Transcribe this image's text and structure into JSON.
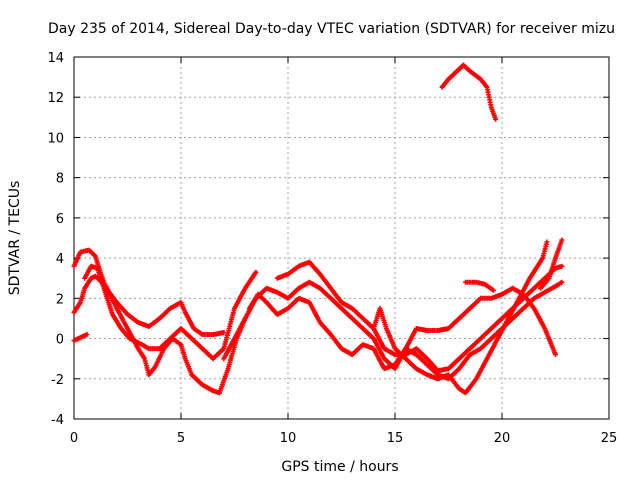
{
  "chart_data": {
    "type": "scatter",
    "title": "Day 235 of 2014, Sidereal Day-to-day VTEC variation (SDTVAR) for receiver mizu",
    "xlabel": "GPS time / hours",
    "ylabel": "SDTVAR / TECUs",
    "xlim": [
      0,
      25
    ],
    "ylim": [
      -4,
      14
    ],
    "grid": true,
    "xticks": [
      "0",
      "5",
      "10",
      "15",
      "20",
      "25"
    ],
    "yticks": [
      "-4",
      "-2",
      "0",
      "2",
      "4",
      "6",
      "8",
      "10",
      "12",
      "14"
    ],
    "marker": "+",
    "color": "#ff0000",
    "series": [
      {
        "name": "trace-1",
        "points": [
          [
            0,
            3.6
          ],
          [
            0.3,
            4.3
          ],
          [
            0.7,
            4.4
          ],
          [
            1.0,
            4.1
          ],
          [
            1.2,
            3.4
          ],
          [
            1.5,
            2.5
          ],
          [
            2.0,
            1.8
          ],
          [
            2.5,
            1.2
          ],
          [
            3.0,
            0.8
          ],
          [
            3.5,
            0.6
          ],
          [
            4.0,
            1.0
          ],
          [
            4.5,
            1.5
          ],
          [
            5.0,
            1.8
          ],
          [
            5.2,
            1.3
          ],
          [
            5.6,
            0.5
          ],
          [
            6.0,
            0.2
          ],
          [
            6.5,
            0.2
          ],
          [
            7.0,
            0.3
          ]
        ]
      },
      {
        "name": "trace-2",
        "points": [
          [
            0,
            1.3
          ],
          [
            0.3,
            1.8
          ],
          [
            0.5,
            2.5
          ],
          [
            0.8,
            3.0
          ],
          [
            1.0,
            3.1
          ],
          [
            1.5,
            2.6
          ],
          [
            2.0,
            1.5
          ],
          [
            2.5,
            0.5
          ],
          [
            3.0,
            -0.5
          ],
          [
            3.3,
            -1.0
          ],
          [
            3.5,
            -1.8
          ],
          [
            3.8,
            -1.4
          ],
          [
            4.2,
            -0.5
          ],
          [
            4.6,
            0
          ],
          [
            5.0,
            -0.3
          ],
          [
            5.2,
            -1.0
          ],
          [
            5.5,
            -1.8
          ],
          [
            6.0,
            -2.3
          ],
          [
            6.5,
            -2.6
          ],
          [
            6.8,
            -2.7
          ],
          [
            7.2,
            -1.5
          ],
          [
            7.6,
            0
          ],
          [
            8.0,
            1.0
          ]
        ]
      },
      {
        "name": "trace-3",
        "points": [
          [
            0,
            -0.1
          ],
          [
            0.2,
            0
          ],
          [
            0.4,
            0.1
          ],
          [
            0.6,
            0.2
          ]
        ]
      },
      {
        "name": "trace-4",
        "points": [
          [
            0.5,
            3.0
          ],
          [
            0.8,
            3.6
          ],
          [
            1.1,
            3.5
          ],
          [
            1.4,
            2.5
          ],
          [
            1.8,
            1.2
          ],
          [
            2.2,
            0.5
          ],
          [
            2.6,
            0
          ],
          [
            3.0,
            -0.2
          ],
          [
            3.5,
            -0.5
          ],
          [
            4.0,
            -0.5
          ],
          [
            4.5,
            0
          ],
          [
            5.0,
            0.5
          ],
          [
            5.5,
            0
          ],
          [
            6.0,
            -0.5
          ],
          [
            6.5,
            -1.0
          ],
          [
            7.0,
            -0.5
          ],
          [
            7.5,
            1.5
          ],
          [
            8.0,
            2.5
          ],
          [
            8.5,
            3.3
          ]
        ]
      },
      {
        "name": "trace-5",
        "points": [
          [
            7.0,
            -1.0
          ],
          [
            7.5,
            0
          ],
          [
            8.0,
            1.0
          ],
          [
            8.5,
            2.0
          ],
          [
            9.0,
            2.5
          ],
          [
            9.5,
            2.3
          ],
          [
            10.0,
            2.0
          ],
          [
            10.5,
            2.5
          ],
          [
            11.0,
            2.8
          ],
          [
            11.5,
            2.5
          ],
          [
            12.0,
            2.0
          ],
          [
            12.5,
            1.5
          ],
          [
            13.0,
            1.0
          ],
          [
            13.5,
            0.5
          ],
          [
            14.0,
            0
          ],
          [
            14.5,
            -1.0
          ],
          [
            15.0,
            -1.5
          ],
          [
            15.5,
            -0.5
          ],
          [
            16.0,
            0.5
          ],
          [
            16.5,
            0.4
          ],
          [
            17.0,
            0.4
          ],
          [
            17.5,
            0.5
          ],
          [
            18.0,
            1.0
          ],
          [
            18.5,
            1.5
          ],
          [
            19.0,
            2.0
          ],
          [
            19.5,
            2.0
          ],
          [
            20.0,
            2.2
          ],
          [
            20.5,
            2.5
          ],
          [
            21.0,
            2.2
          ],
          [
            21.5,
            1.5
          ],
          [
            22.0,
            0.5
          ],
          [
            22.5,
            -0.8
          ]
        ]
      },
      {
        "name": "trace-6",
        "points": [
          [
            9.5,
            3.0
          ],
          [
            10.0,
            3.2
          ],
          [
            10.5,
            3.6
          ],
          [
            11.0,
            3.8
          ],
          [
            11.5,
            3.2
          ],
          [
            12.0,
            2.5
          ],
          [
            12.5,
            1.8
          ],
          [
            13.0,
            1.5
          ],
          [
            13.5,
            1.0
          ],
          [
            14.0,
            0.5
          ],
          [
            14.5,
            -0.5
          ],
          [
            15.0,
            -0.8
          ],
          [
            15.5,
            -0.8
          ],
          [
            16.0,
            -0.5
          ],
          [
            16.5,
            -1.0
          ],
          [
            17.0,
            -1.6
          ],
          [
            17.5,
            -1.5
          ],
          [
            18.0,
            -1.0
          ],
          [
            18.5,
            -0.5
          ],
          [
            19.0,
            0
          ],
          [
            19.5,
            0.5
          ],
          [
            20.0,
            1.0
          ],
          [
            20.5,
            1.5
          ],
          [
            21.0,
            2.0
          ],
          [
            21.5,
            2.5
          ],
          [
            22.0,
            3.0
          ],
          [
            22.5,
            3.5
          ],
          [
            22.8,
            3.6
          ]
        ]
      },
      {
        "name": "trace-7",
        "points": [
          [
            8.2,
            1.5
          ],
          [
            8.6,
            2.2
          ],
          [
            9.0,
            1.8
          ],
          [
            9.5,
            1.2
          ],
          [
            10.0,
            1.5
          ],
          [
            10.5,
            2.0
          ],
          [
            11.0,
            1.8
          ],
          [
            11.5,
            0.8
          ],
          [
            12.0,
            0.2
          ],
          [
            12.5,
            -0.5
          ],
          [
            13.0,
            -0.8
          ],
          [
            13.5,
            -0.3
          ],
          [
            14.0,
            -0.5
          ],
          [
            14.5,
            -1.5
          ],
          [
            15.0,
            -1.3
          ],
          [
            15.5,
            -0.5
          ],
          [
            16.0,
            -0.8
          ],
          [
            16.5,
            -1.3
          ],
          [
            17.0,
            -1.8
          ],
          [
            17.5,
            -2.0
          ],
          [
            18.0,
            -1.5
          ],
          [
            18.5,
            -0.8
          ],
          [
            19.0,
            -0.5
          ],
          [
            19.5,
            0
          ],
          [
            20.0,
            0.5
          ],
          [
            20.5,
            1.0
          ],
          [
            21.0,
            1.5
          ],
          [
            21.5,
            2.0
          ],
          [
            22.0,
            2.3
          ],
          [
            22.5,
            2.6
          ],
          [
            22.8,
            2.8
          ]
        ]
      },
      {
        "name": "trace-8",
        "points": [
          [
            14.0,
            0.5
          ],
          [
            14.3,
            1.5
          ],
          [
            14.6,
            0.5
          ],
          [
            15.0,
            -0.5
          ],
          [
            15.5,
            -1.0
          ],
          [
            16.0,
            -1.5
          ],
          [
            16.5,
            -1.8
          ],
          [
            17.0,
            -2.0
          ],
          [
            17.5,
            -1.8
          ],
          [
            18.0,
            -2.5
          ],
          [
            18.3,
            -2.7
          ],
          [
            18.8,
            -2.0
          ],
          [
            19.3,
            -1.0
          ],
          [
            19.8,
            0
          ],
          [
            20.3,
            1.0
          ],
          [
            20.8,
            2.0
          ],
          [
            21.3,
            3.0
          ],
          [
            21.6,
            3.5
          ],
          [
            21.9,
            4.0
          ],
          [
            22.1,
            4.8
          ]
        ]
      },
      {
        "name": "trace-9",
        "points": [
          [
            18.3,
            2.8
          ],
          [
            18.8,
            2.8
          ],
          [
            19.2,
            2.7
          ],
          [
            19.6,
            2.4
          ]
        ]
      },
      {
        "name": "trace-10",
        "points": [
          [
            21.8,
            2.5
          ],
          [
            22.2,
            3.0
          ],
          [
            22.5,
            4.0
          ],
          [
            22.8,
            4.9
          ]
        ]
      },
      {
        "name": "trace-11",
        "points": [
          [
            17.2,
            12.5
          ],
          [
            17.5,
            12.9
          ],
          [
            18.0,
            13.4
          ],
          [
            18.2,
            13.6
          ],
          [
            18.5,
            13.3
          ],
          [
            19.0,
            12.9
          ],
          [
            19.3,
            12.5
          ],
          [
            19.5,
            11.5
          ],
          [
            19.7,
            10.9
          ]
        ]
      }
    ]
  }
}
